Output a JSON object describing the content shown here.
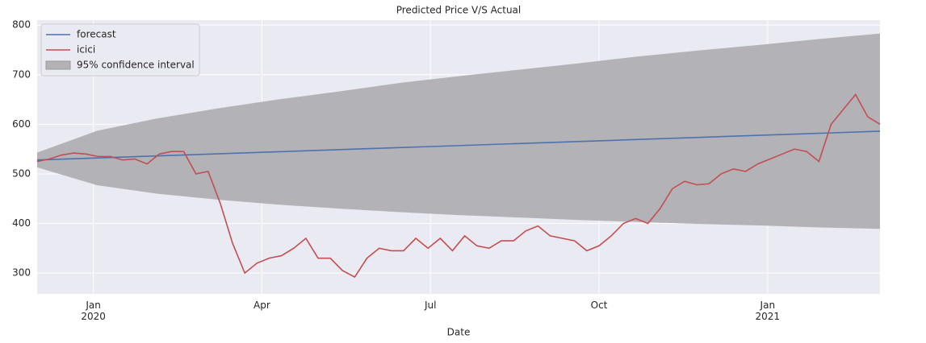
{
  "chart_data": {
    "type": "line",
    "title": "Predicted Price V/S Actual",
    "x_label": "Date",
    "xlim": [
      "2019-12",
      "2021-03"
    ],
    "xticks": [
      {
        "value": "2020-01",
        "label": "Jan\n2020"
      },
      {
        "value": "2020-04",
        "label": "Apr"
      },
      {
        "value": "2020-07",
        "label": "Jul"
      },
      {
        "value": "2020-10",
        "label": "Oct"
      },
      {
        "value": "2021-01",
        "label": "Jan\n2021"
      }
    ],
    "ylim": [
      258,
      810
    ],
    "yticks": [
      300,
      400,
      500,
      600,
      700,
      800
    ],
    "grid": true,
    "legend": "upper left",
    "series": [
      {
        "name": "forecast",
        "color": "#4c72b0",
        "values": [
          528,
          586
        ]
      },
      {
        "name": "icici",
        "color": "#c44e52",
        "values": [
          525,
          530,
          538,
          542,
          540,
          535,
          535,
          528,
          530,
          520,
          540,
          545,
          545,
          500,
          505,
          440,
          360,
          300,
          320,
          330,
          335,
          350,
          370,
          330,
          330,
          305,
          292,
          330,
          350,
          345,
          345,
          370,
          350,
          370,
          345,
          375,
          355,
          350,
          365,
          365,
          385,
          395,
          375,
          370,
          365,
          345,
          355,
          375,
          400,
          410,
          400,
          430,
          470,
          485,
          478,
          480,
          500,
          510,
          505,
          520,
          530,
          540,
          550,
          545,
          525,
          600,
          630,
          660,
          615,
          600
        ]
      },
      {
        "name": "95% confidence interval",
        "color": "#b3b2b7",
        "upper": [
          543,
          587,
          612,
          632,
          650,
          666,
          683,
          697,
          710,
          723,
          737,
          749,
          760,
          772,
          783
        ],
        "lower": [
          513,
          477,
          460,
          448,
          438,
          430,
          423,
          417,
          412,
          407,
          403,
          399,
          396,
          392,
          389
        ]
      }
    ]
  }
}
